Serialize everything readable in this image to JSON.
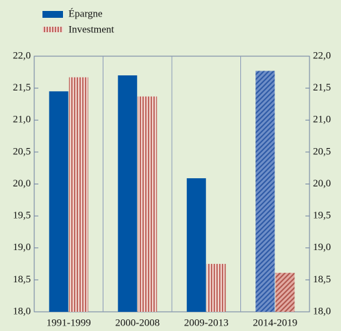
{
  "chart_data": {
    "type": "bar",
    "categories": [
      "1991-1999",
      "2000-2008",
      "2009-2013",
      "2014-2019"
    ],
    "series": [
      {
        "name": "Épargne",
        "color": "#0055a5",
        "values": [
          21.45,
          21.7,
          20.09,
          21.77
        ]
      },
      {
        "name": "Investment",
        "color": "#c0665e",
        "values": [
          21.67,
          21.37,
          18.75,
          18.61
        ]
      }
    ],
    "hatched_categories": [
      3
    ],
    "ylim": [
      18,
      22
    ],
    "yticks": [
      {
        "value": 18,
        "label": "18,0"
      },
      {
        "value": 18.5,
        "label": "18,5"
      },
      {
        "value": 19,
        "label": "19,0"
      },
      {
        "value": 19.5,
        "label": "19,5"
      },
      {
        "value": 20,
        "label": "20,0"
      },
      {
        "value": 20.5,
        "label": "20,5"
      },
      {
        "value": 21,
        "label": "21,0"
      },
      {
        "value": 21.5,
        "label": "21,5"
      },
      {
        "value": 22,
        "label": "22,0"
      }
    ],
    "grid": false
  }
}
